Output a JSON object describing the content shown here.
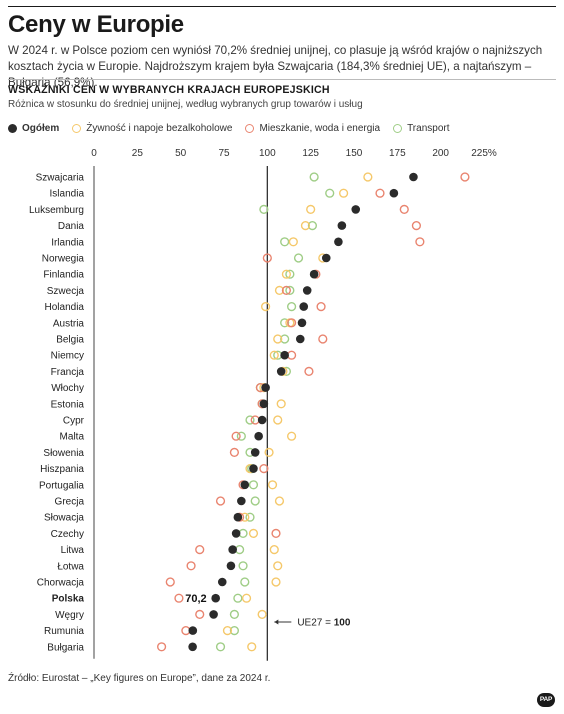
{
  "header": {
    "title": "Ceny w Europie",
    "lead": "W 2024 r. w Polsce poziom cen wyniósł 70,2% średniej unijnej, co plasuje ją wśród krajów o najniższych kosztach życia w Europie. Najdroższym krajem była Szwajcaria (184,3% średniej UE), a najtańszym – Bułgaria (56,9%).",
    "subhead": "WSKAŹNIKI CEN W WYBRANYCH KRAJACH EUROPEJSKICH",
    "subline": "Różnica w stosunku do średniej unijnej, według wybranych grup towarów i usług"
  },
  "colors": {
    "overall": "#2b2b2b",
    "food": "#f5c86a",
    "housing": "#e9846f",
    "transport": "#9fcd86",
    "reference_line": "#333333"
  },
  "chart_data": {
    "type": "scatter",
    "x_ticks": [
      "0",
      "25",
      "50",
      "75",
      "100",
      "125",
      "150",
      "175",
      "200",
      "225%"
    ],
    "xlim": [
      0,
      225
    ],
    "grid": false,
    "legend_position": "top",
    "series": [
      {
        "key": "overall",
        "name": "Ogółem",
        "style": "filled"
      },
      {
        "key": "food",
        "name": "Żywność i napoje bezalkoholowe",
        "style": "ring"
      },
      {
        "key": "housing",
        "name": "Mieszkanie, woda i energia",
        "style": "ring"
      },
      {
        "key": "transport",
        "name": "Transport",
        "style": "ring"
      }
    ],
    "countries": [
      {
        "name": "Szwajcaria",
        "overall": 184.3,
        "food": 158,
        "housing": 214,
        "transport": 127
      },
      {
        "name": "Islandia",
        "overall": 173,
        "food": 144,
        "housing": 165,
        "transport": 136
      },
      {
        "name": "Luksemburg",
        "overall": 151,
        "food": 125,
        "housing": 179,
        "transport": 98
      },
      {
        "name": "Dania",
        "overall": 143,
        "food": 122,
        "housing": 186,
        "transport": 126
      },
      {
        "name": "Irlandia",
        "overall": 141,
        "food": 115,
        "housing": 188,
        "transport": 110
      },
      {
        "name": "Norwegia",
        "overall": 134,
        "food": 132,
        "housing": 100,
        "transport": 118
      },
      {
        "name": "Finlandia",
        "overall": 127,
        "food": 111,
        "housing": 128,
        "transport": 113
      },
      {
        "name": "Szwecja",
        "overall": 123,
        "food": 107,
        "housing": 111,
        "transport": 113
      },
      {
        "name": "Holandia",
        "overall": 121,
        "food": 99,
        "housing": 131,
        "transport": 114
      },
      {
        "name": "Austria",
        "overall": 120,
        "food": 113,
        "housing": 114,
        "transport": 110
      },
      {
        "name": "Belgia",
        "overall": 119,
        "food": 106,
        "housing": 132,
        "transport": 110
      },
      {
        "name": "Niemcy",
        "overall": 110,
        "food": 104,
        "housing": 114,
        "transport": 106
      },
      {
        "name": "Francja",
        "overall": 108,
        "food": 109,
        "housing": 124,
        "transport": 111
      },
      {
        "name": "Włochy",
        "overall": 99,
        "food": 98,
        "housing": 96,
        "transport": 96
      },
      {
        "name": "Estonia",
        "overall": 98,
        "food": 108,
        "housing": 97,
        "transport": 97
      },
      {
        "name": "Cypr",
        "overall": 97,
        "food": 106,
        "housing": 93,
        "transport": 90
      },
      {
        "name": "Malta",
        "overall": 95,
        "food": 114,
        "housing": 82,
        "transport": 85
      },
      {
        "name": "Słowenia",
        "overall": 93,
        "food": 101,
        "housing": 81,
        "transport": 90
      },
      {
        "name": "Hiszpania",
        "overall": 92,
        "food": 90,
        "housing": 98,
        "transport": 91
      },
      {
        "name": "Portugalia",
        "overall": 87,
        "food": 103,
        "housing": 86,
        "transport": 92
      },
      {
        "name": "Grecja",
        "overall": 85,
        "food": 107,
        "housing": 73,
        "transport": 93
      },
      {
        "name": "Słowacja",
        "overall": 83,
        "food": 87,
        "housing": 84,
        "transport": 90
      },
      {
        "name": "Czechy",
        "overall": 82,
        "food": 92,
        "housing": 105,
        "transport": 86
      },
      {
        "name": "Litwa",
        "overall": 80,
        "food": 104,
        "housing": 61,
        "transport": 84
      },
      {
        "name": "Łotwa",
        "overall": 79,
        "food": 106,
        "housing": 56,
        "transport": 86
      },
      {
        "name": "Chorwacja",
        "overall": 74,
        "food": 105,
        "housing": 44,
        "transport": 87
      },
      {
        "name": "Polska",
        "overall": 70.2,
        "food": 88,
        "housing": 49,
        "transport": 83,
        "highlight": true
      },
      {
        "name": "Węgry",
        "overall": 69,
        "food": 97,
        "housing": 61,
        "transport": 81
      },
      {
        "name": "Rumunia",
        "overall": 57,
        "food": 77,
        "housing": 53,
        "transport": 81
      },
      {
        "name": "Bułgaria",
        "overall": 56.9,
        "food": 91,
        "housing": 39,
        "transport": 73
      }
    ],
    "reference": {
      "value": 100,
      "label_prefix": "UE27 = ",
      "label_value": "100"
    },
    "annotation": {
      "country": "Polska",
      "text": "70,2"
    }
  },
  "legend": [
    {
      "label": "Ogółem",
      "key": "overall",
      "bold": true
    },
    {
      "label": "Żywność i napoje bezalkoholowe",
      "key": "food",
      "bold": false
    },
    {
      "label": "Mieszkanie, woda i energia",
      "key": "housing",
      "bold": false
    },
    {
      "label": "Transport",
      "key": "transport",
      "bold": false
    }
  ],
  "footer": {
    "source": "Źródło: Eurostat – „Key figures on Europe”, dane za 2024 r.",
    "logo": "PAP"
  }
}
